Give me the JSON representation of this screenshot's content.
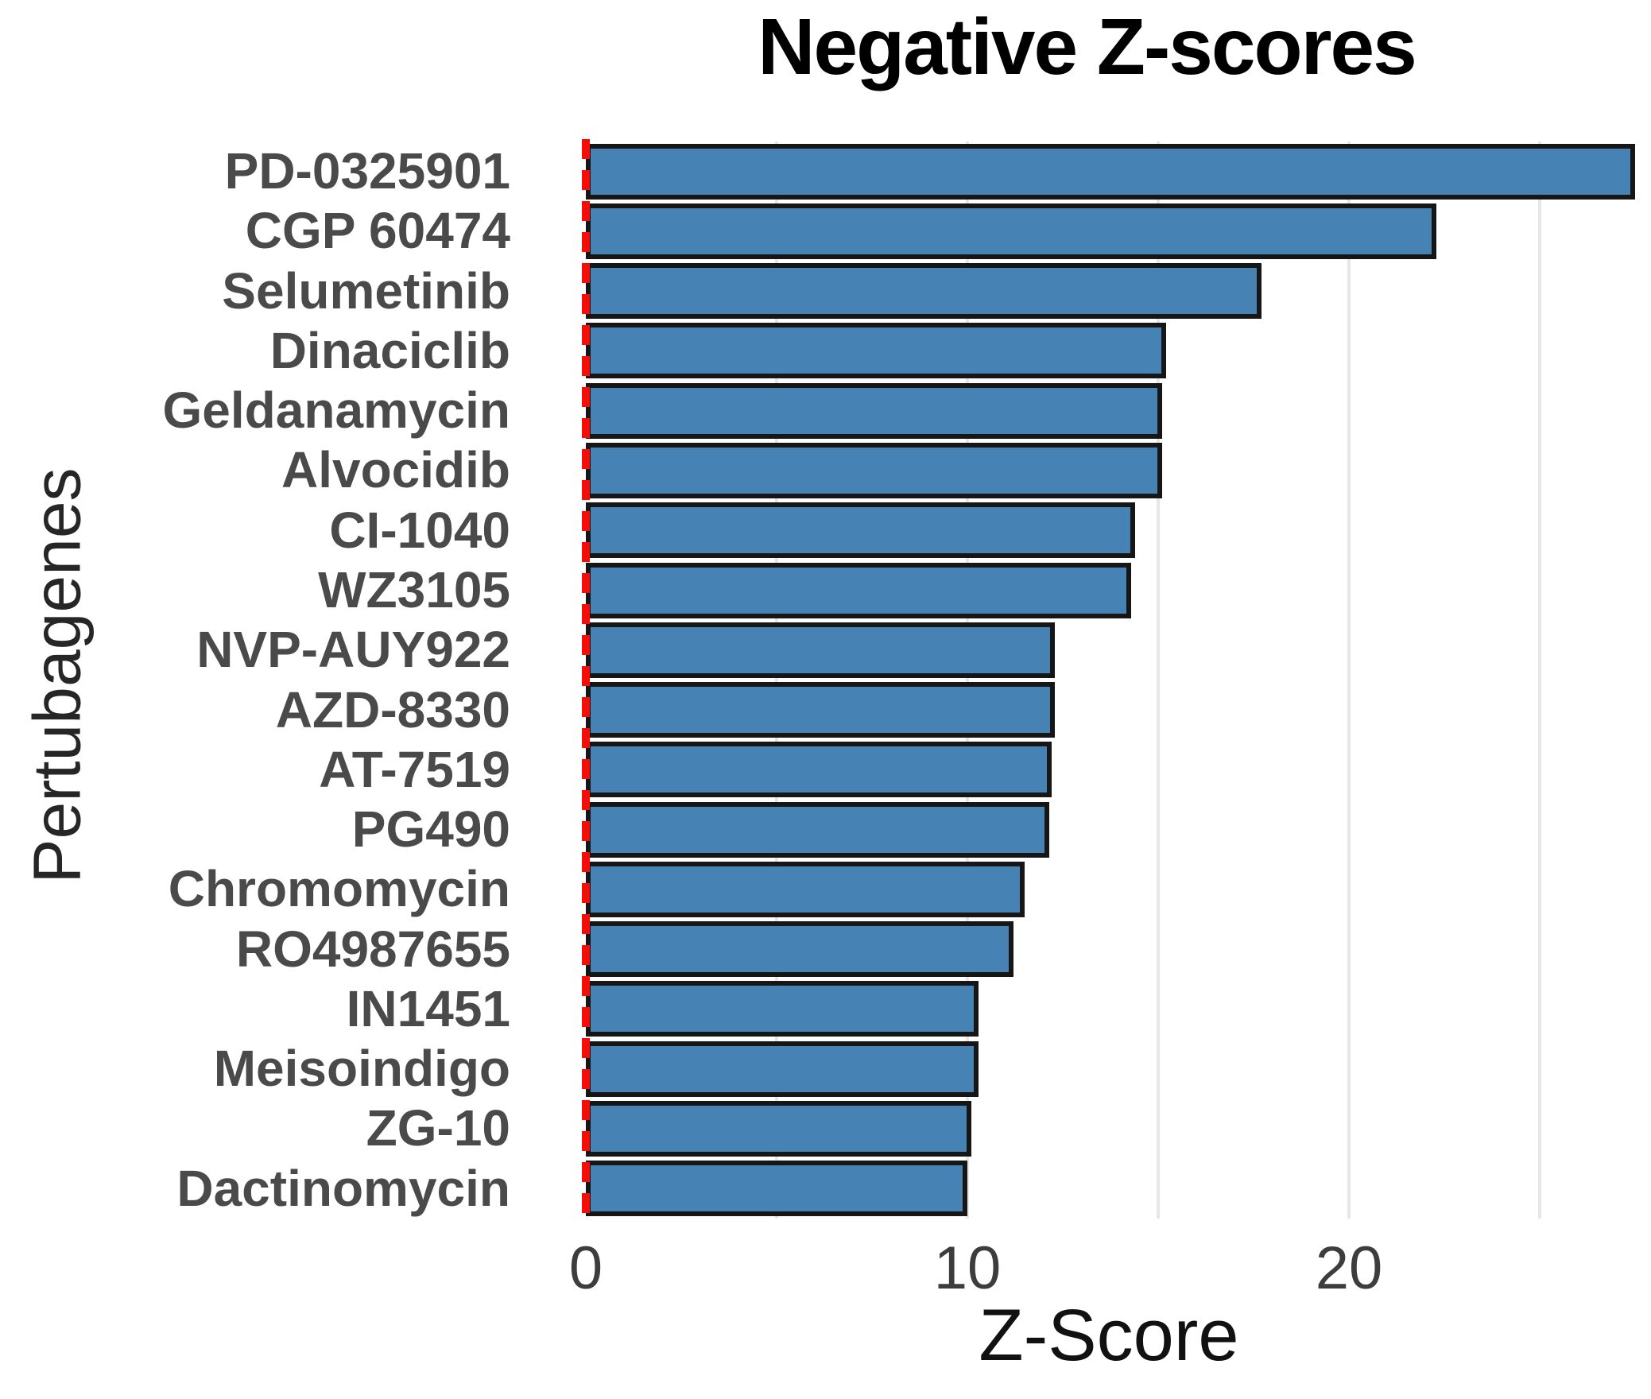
{
  "title": "Negative Z-scores",
  "colors": {
    "bar_fill": "#4682b4",
    "bar_border": "#161616",
    "zero_line_red": "#f50d08",
    "gridline_gray": "#e7e7e7",
    "tick_label_gray": "#4a4a4a",
    "title_black": "#000000"
  },
  "chart_data": {
    "type": "bar",
    "orientation": "horizontal",
    "title": "Negative Z-scores",
    "xlabel": "Z-Score",
    "ylabel": "Pertubagenes",
    "xlim": [
      0,
      27.9
    ],
    "x_ticks": [
      0,
      10,
      20
    ],
    "x_tick_labels": [
      "0",
      "10",
      "20"
    ],
    "gridline_values": [
      5,
      10,
      15,
      20,
      25
    ],
    "grid": "vertical-light-gray",
    "legend": "none",
    "zero_reference_line": {
      "x": 0,
      "style": "dashed",
      "color": "red"
    },
    "categories": [
      "PD-0325901",
      "CGP 60474",
      "Selumetinib",
      "Dinaciclib",
      "Geldanamycin",
      "Alvocidib",
      "CI-1040",
      "WZ3105",
      "NVP-AUY922",
      "AZD-8330",
      "AT-7519",
      "PG490",
      "Chromomycin",
      "RO4987655",
      "IN1451",
      "Meisoindigo",
      "ZG-10",
      "Dactinomycin"
    ],
    "values": [
      27.5,
      22.3,
      17.7,
      15.2,
      15.1,
      15.1,
      14.4,
      14.3,
      12.3,
      12.3,
      12.2,
      12.15,
      11.5,
      11.2,
      10.3,
      10.3,
      10.1,
      10.0
    ]
  }
}
